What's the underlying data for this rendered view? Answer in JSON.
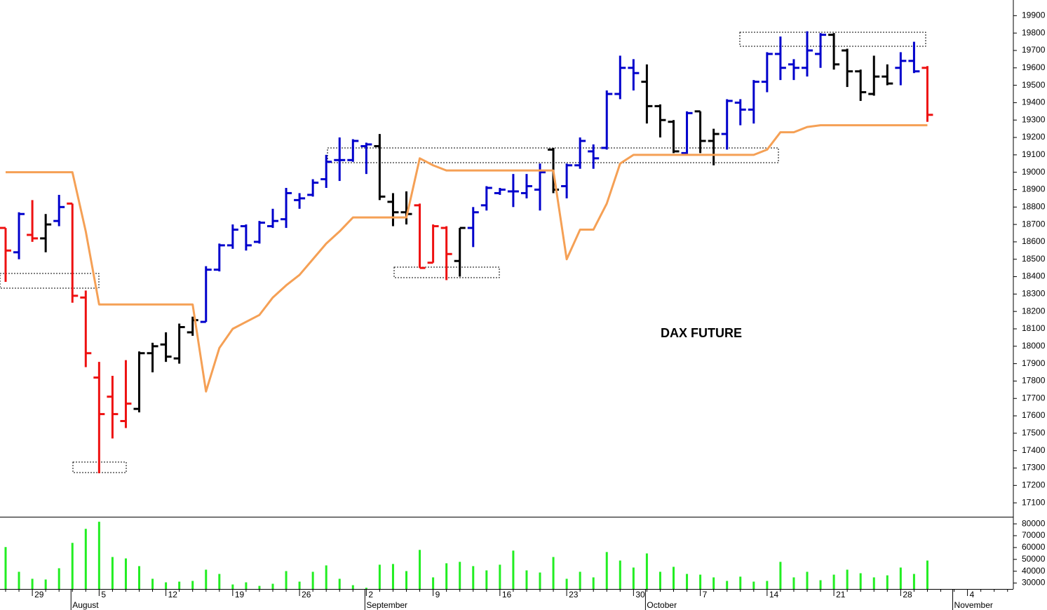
{
  "chart_data": {
    "type": "ohlc",
    "title": "DAX FUTURE",
    "categories": [
      null,
      null,
      "29",
      null,
      null,
      null,
      null,
      "5",
      null,
      null,
      null,
      null,
      "12",
      null,
      null,
      null,
      null,
      "19",
      null,
      null,
      null,
      null,
      "26",
      null,
      null,
      null,
      null,
      "2",
      null,
      null,
      null,
      null,
      "9",
      null,
      null,
      null,
      null,
      "16",
      null,
      null,
      null,
      null,
      "23",
      null,
      null,
      null,
      null,
      "30",
      null,
      null,
      null,
      null,
      "7",
      null,
      null,
      null,
      null,
      "14",
      null,
      null,
      null,
      null,
      "21",
      null,
      null,
      null,
      null,
      "28",
      null,
      null,
      null,
      null,
      "4",
      null,
      null,
      null
    ],
    "months": [
      null,
      null,
      null,
      null,
      null,
      "August",
      null,
      null,
      null,
      null,
      null,
      null,
      null,
      null,
      null,
      null,
      null,
      null,
      null,
      null,
      null,
      null,
      null,
      null,
      null,
      null,
      null,
      "September",
      null,
      null,
      null,
      null,
      null,
      null,
      null,
      null,
      null,
      null,
      null,
      null,
      null,
      null,
      null,
      null,
      null,
      null,
      null,
      null,
      "October",
      null,
      null,
      null,
      null,
      null,
      null,
      null,
      null,
      null,
      null,
      null,
      null,
      null,
      null,
      null,
      null,
      null,
      null,
      null,
      null,
      null,
      null,
      "November",
      null,
      null,
      null,
      null
    ],
    "open": [
      18680,
      18540,
      18640,
      18620,
      18720,
      18820,
      18280,
      17820,
      17710,
      17570,
      17640,
      17960,
      18010,
      17930,
      18080,
      18140,
      18440,
      18580,
      18690,
      18600,
      18690,
      18730,
      18840,
      18870,
      18960,
      19070,
      19070,
      19150,
      19150,
      18830,
      18770,
      18810,
      18480,
      18680,
      18490,
      18680,
      18810,
      18880,
      18890,
      18880,
      18900,
      19130,
      18920,
      19040,
      19120,
      19140,
      19450,
      19600,
      19520,
      19380,
      19290,
      19110,
      19350,
      19180,
      19220,
      19400,
      19360,
      19520,
      19680,
      19620,
      19600,
      19680,
      19790,
      19700,
      19580,
      19450,
      19550,
      19600,
      19640,
      19600,
      null,
      null,
      null,
      null,
      null,
      null
    ],
    "high": [
      18680,
      18770,
      18840,
      18760,
      18870,
      18820,
      18320,
      17910,
      17830,
      17920,
      17970,
      18020,
      18080,
      18130,
      18170,
      18460,
      18590,
      18700,
      18700,
      18720,
      18790,
      18910,
      18880,
      18960,
      19100,
      19200,
      19190,
      19170,
      19220,
      18880,
      18890,
      18820,
      18700,
      18690,
      18680,
      18800,
      18920,
      18910,
      18990,
      18990,
      19050,
      19140,
      19050,
      19200,
      19160,
      19470,
      19670,
      19650,
      19620,
      19390,
      19300,
      19350,
      19350,
      19250,
      19420,
      19420,
      19530,
      19690,
      19780,
      19650,
      19810,
      19800,
      19800,
      19710,
      19590,
      19670,
      19620,
      19690,
      19750,
      19610,
      null,
      null,
      null,
      null,
      null,
      null
    ],
    "low": [
      18370,
      18500,
      18600,
      18540,
      18690,
      18250,
      17880,
      17270,
      17470,
      17530,
      17620,
      17850,
      17910,
      17900,
      18060,
      18140,
      18430,
      18560,
      18550,
      18590,
      18680,
      18680,
      18790,
      18860,
      18910,
      18950,
      19060,
      18990,
      18840,
      18690,
      18700,
      18450,
      18480,
      18380,
      18400,
      18570,
      18780,
      18870,
      18800,
      18850,
      18780,
      18880,
      18850,
      19020,
      19020,
      19130,
      19420,
      19470,
      19280,
      19200,
      19110,
      19100,
      19110,
      19040,
      19130,
      19270,
      19280,
      19460,
      19530,
      19530,
      19550,
      19600,
      19590,
      19490,
      19410,
      19440,
      19500,
      19500,
      19570,
      19290,
      null,
      null,
      null,
      null,
      null,
      null
    ],
    "close": [
      18550,
      18760,
      18620,
      18700,
      18800,
      18290,
      17960,
      17610,
      17610,
      17670,
      17960,
      18000,
      17940,
      18110,
      18150,
      18440,
      18580,
      18670,
      18580,
      18710,
      18720,
      18880,
      18850,
      18940,
      19060,
      19070,
      19180,
      19160,
      18860,
      18770,
      18760,
      18450,
      18690,
      18530,
      18680,
      18770,
      18910,
      18900,
      18890,
      18920,
      19000,
      18900,
      19040,
      19180,
      19080,
      19450,
      19600,
      19570,
      19380,
      19300,
      19120,
      19340,
      19180,
      19220,
      19410,
      19360,
      19520,
      19680,
      19600,
      19600,
      19700,
      19790,
      19620,
      19580,
      19460,
      19550,
      19510,
      19640,
      19580,
      19330,
      null,
      null,
      null,
      null,
      null,
      null
    ],
    "bar_colors": [
      "#ee1111",
      "#0000cc",
      "#ee1111",
      "#000000",
      "#0000cc",
      "#ee1111",
      "#ee1111",
      "#ee1111",
      "#ee1111",
      "#ee1111",
      "#000000",
      "#000000",
      "#000000",
      "#000000",
      "#000000",
      "#0000cc",
      "#0000cc",
      "#0000cc",
      "#0000cc",
      "#0000cc",
      "#0000cc",
      "#0000cc",
      "#0000cc",
      "#0000cc",
      "#0000cc",
      "#0000cc",
      "#0000cc",
      "#0000cc",
      "#000000",
      "#000000",
      "#000000",
      "#ee1111",
      "#ee1111",
      "#ee1111",
      "#000000",
      "#0000cc",
      "#0000cc",
      "#0000cc",
      "#0000cc",
      "#0000cc",
      "#0000cc",
      "#000000",
      "#0000cc",
      "#0000cc",
      "#0000cc",
      "#0000cc",
      "#0000cc",
      "#0000cc",
      "#000000",
      "#000000",
      "#000000",
      "#0000cc",
      "#000000",
      "#000000",
      "#0000cc",
      "#0000cc",
      "#0000cc",
      "#0000cc",
      "#0000cc",
      "#0000cc",
      "#0000cc",
      "#0000cc",
      "#000000",
      "#000000",
      "#000000",
      "#000000",
      "#000000",
      "#0000cc",
      "#0000cc",
      "#ee1111",
      null,
      null,
      null,
      null,
      null,
      null
    ],
    "stop_line": {
      "color": "#f5a055",
      "values": [
        19000,
        19000,
        19000,
        19000,
        19000,
        19000,
        18660,
        18240,
        18240,
        18240,
        18240,
        18240,
        18240,
        18240,
        18240,
        17740,
        17990,
        18100,
        18140,
        18180,
        18280,
        18350,
        18410,
        18500,
        18590,
        18660,
        18740,
        18740,
        18740,
        18740,
        18740,
        19080,
        19040,
        19010,
        19010,
        19010,
        19010,
        19010,
        19010,
        19010,
        19010,
        19010,
        18500,
        18670,
        18670,
        18820,
        19050,
        19100,
        19100,
        19100,
        19100,
        19100,
        19100,
        19100,
        19100,
        19100,
        19100,
        19130,
        19230,
        19230,
        19260,
        19270,
        19270,
        19270,
        19270,
        19270,
        19270,
        19270,
        19270,
        19270,
        null,
        null,
        null,
        null,
        null,
        null
      ]
    },
    "ylim": [
      17020,
      19990
    ],
    "yticks": [
      17100,
      17200,
      17300,
      17400,
      17500,
      17600,
      17700,
      17800,
      17900,
      18000,
      18100,
      18200,
      18300,
      18400,
      18500,
      18600,
      18700,
      18800,
      18900,
      19000,
      19100,
      19200,
      19300,
      19400,
      19500,
      19600,
      19700,
      19800,
      19900
    ],
    "volume": {
      "color": "#22ee22",
      "values": [
        60400,
        39500,
        33600,
        33000,
        42500,
        63900,
        75800,
        81800,
        52000,
        50800,
        44300,
        33600,
        30600,
        31200,
        31800,
        41300,
        37700,
        28800,
        30600,
        27600,
        29400,
        40100,
        31200,
        39500,
        44900,
        33600,
        28200,
        26000,
        45500,
        46100,
        40100,
        58000,
        34800,
        46700,
        47900,
        44300,
        40700,
        45500,
        57400,
        40700,
        38900,
        52000,
        33600,
        39500,
        34800,
        56200,
        49000,
        43100,
        55000,
        39500,
        43700,
        37700,
        37100,
        34800,
        31800,
        35400,
        31200,
        31800,
        47900,
        34800,
        39500,
        32400,
        37100,
        41300,
        38300,
        34800,
        36500,
        43100,
        37700,
        49000,
        null,
        null,
        null,
        null,
        null,
        null
      ],
      "ylim": [
        25000,
        85400
      ],
      "yticks": [
        30000,
        40000,
        50000,
        60000,
        70000,
        80000
      ]
    }
  }
}
